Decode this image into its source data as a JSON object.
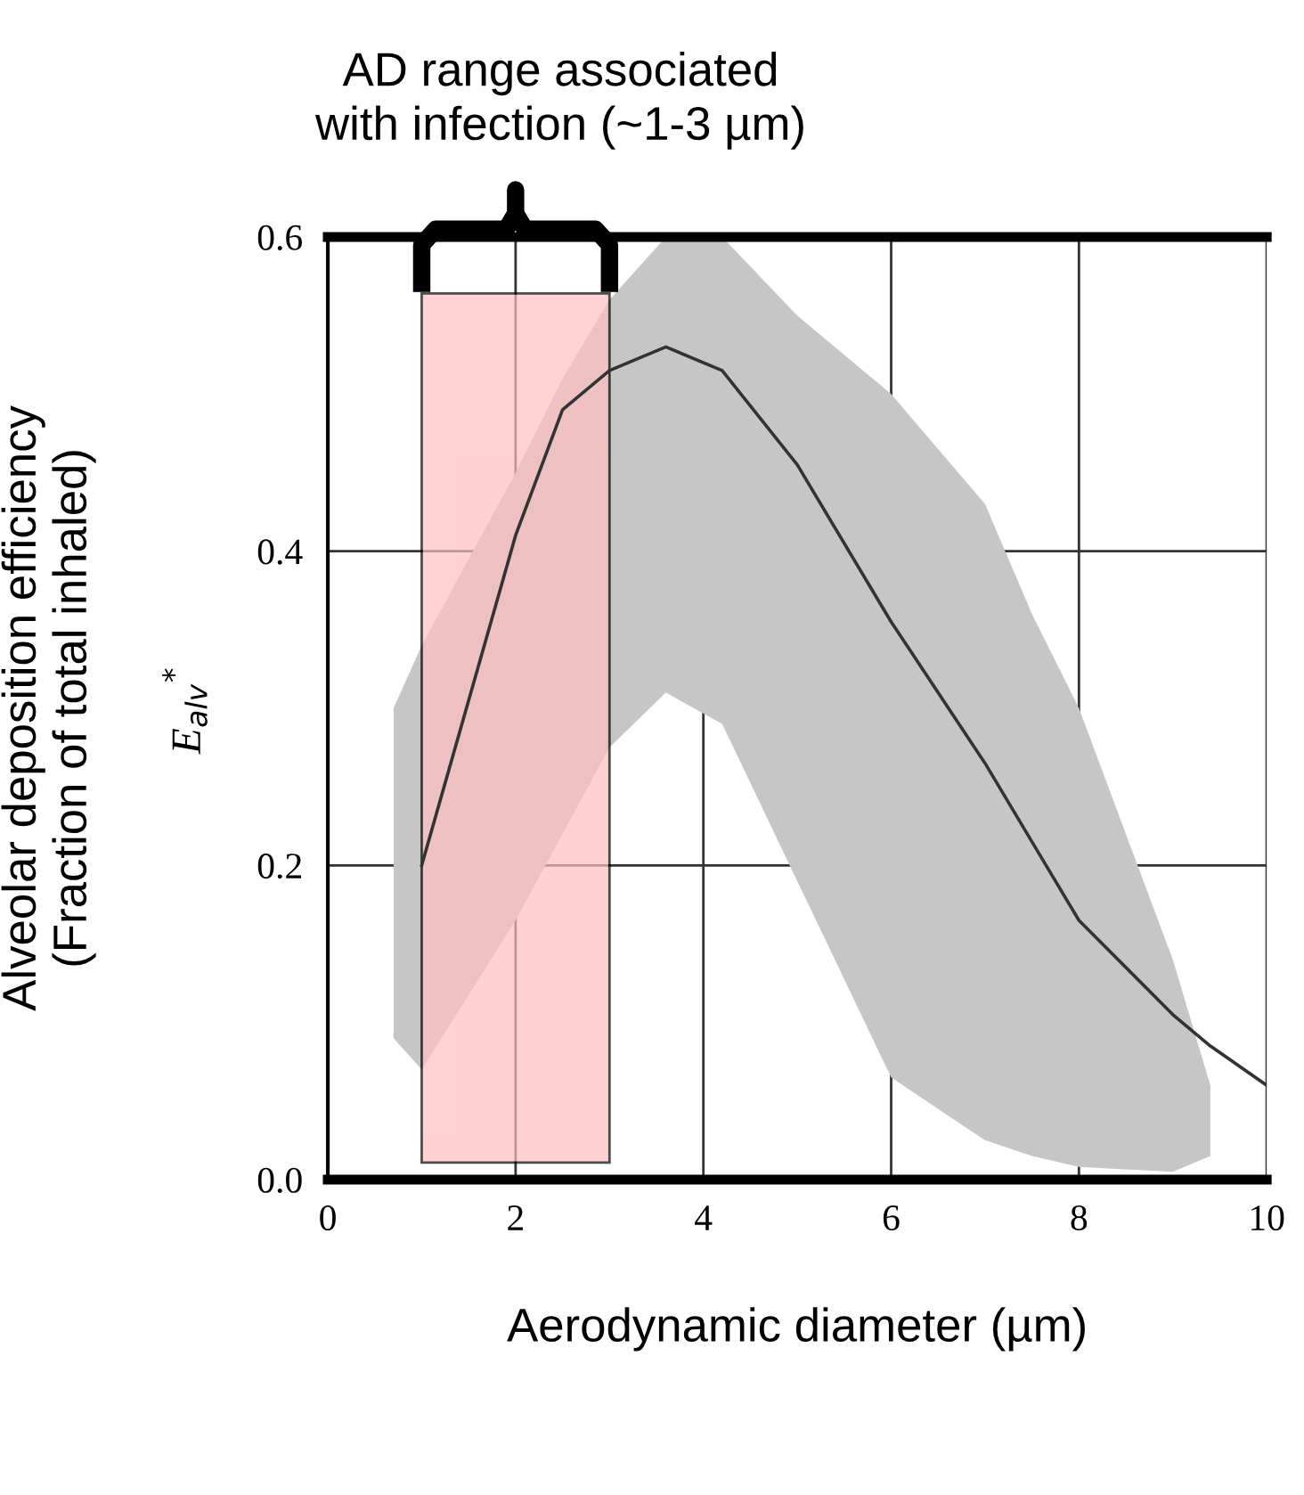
{
  "chart_data": {
    "type": "line",
    "xlabel": "Aerodynamic diameter (µm)",
    "ylabel": "Alveolar deposition efficiency\n(Fraction of total inhaled)",
    "annotations": [
      "E$_{alv}$$^{*}$",
      "AD range associated\nwith infection (~1-3 µm)"
    ],
    "series": [
      {
        "color": "#333333",
        "x": [
          0.7,
          1,
          2,
          2.5,
          3,
          3.6,
          4.2,
          5,
          6,
          7,
          7.5,
          8,
          9,
          9.4,
          10
        ],
        "values": [
          null,
          0.2,
          0.41,
          0.49,
          0.515,
          0.53,
          0.515,
          0.455,
          0.355,
          0.265,
          0.215,
          0.165,
          0.105,
          0.085,
          0.06
        ],
        "upper": [
          0.3,
          0.34,
          0.45,
          0.51,
          0.56,
          0.6,
          0.6,
          0.55,
          0.5,
          0.43,
          0.36,
          0.3,
          0.14,
          0.06,
          null
        ],
        "lower": [
          0.09,
          0.07,
          0.165,
          0.22,
          0.275,
          0.31,
          0.29,
          0.19,
          0.065,
          0.025,
          0.015,
          0.008,
          0.005,
          0.015,
          null
        ]
      }
    ],
    "bands": [
      {
        "axis": "x",
        "from": 1,
        "to": 3,
        "color": "#ffc0c0"
      }
    ],
    "xlim": [
      0,
      10
    ],
    "ylim": [
      0,
      0.6
    ],
    "xticks": [
      0,
      2,
      4,
      6,
      8,
      10
    ],
    "yticks": [
      {
        "value": 0,
        "label": "0.0"
      },
      0.2,
      0.4,
      0.6
    ],
    "grid": true,
    "line_style": "solid",
    "marker": "none"
  }
}
